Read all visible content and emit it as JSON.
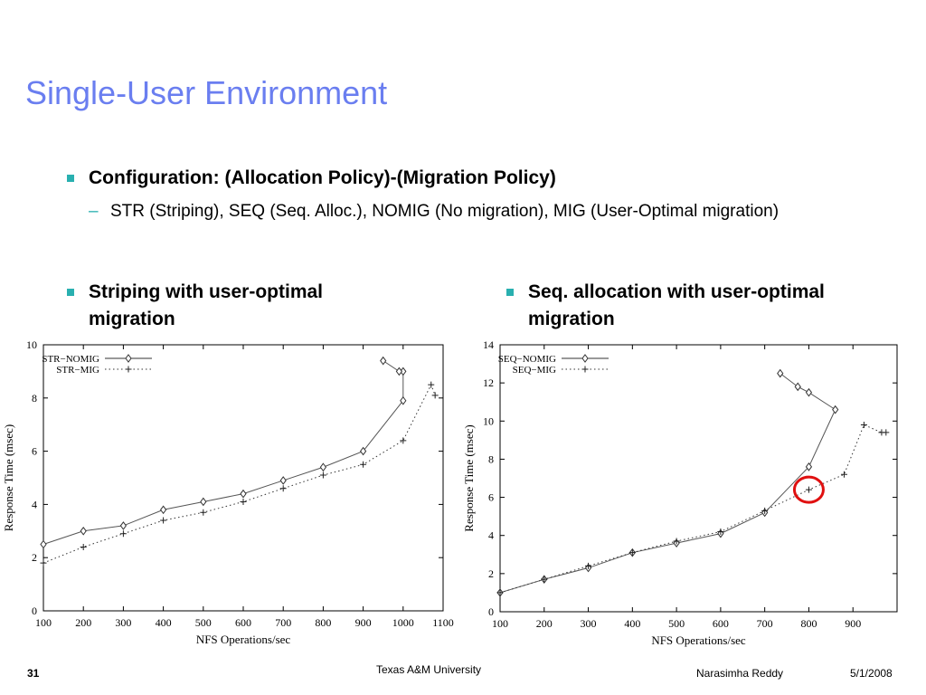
{
  "slide": {
    "title": "Single-User Environment",
    "bullet1": "Configuration: (Allocation Policy)-(Migration Policy)",
    "sub1": "STR (Striping), SEQ (Seq. Alloc.), NOMIG (No migration), MIG (User-Optimal migration)",
    "left_caption": "Striping with user-optimal migration",
    "right_caption": "Seq. allocation with user-optimal migration",
    "footer_page": "31",
    "footer_center": "Texas A&M University",
    "footer_author": "Narasimha Reddy",
    "footer_date": "5/1/2008",
    "accent_color": "#6a7ef0",
    "bullet_color": "#29b0b0",
    "highlight_color": "#e01010"
  },
  "chart_data": [
    {
      "type": "line",
      "xlabel": "NFS Operations/sec",
      "ylabel": "Response Time (msec)",
      "xlim": [
        100,
        1100
      ],
      "ylim": [
        0,
        10
      ],
      "xticks": [
        100,
        200,
        300,
        400,
        500,
        600,
        700,
        800,
        900,
        1000,
        1100
      ],
      "yticks": [
        0,
        2,
        4,
        6,
        8,
        10
      ],
      "legend": "top-left",
      "series": [
        {
          "name": "STR−NOMIG",
          "marker": "diamond",
          "style": "solid",
          "x": [
            100,
            200,
            300,
            400,
            500,
            600,
            700,
            800,
            900,
            1000,
            1000,
            990,
            950
          ],
          "y": [
            2.5,
            3.0,
            3.2,
            3.8,
            4.1,
            4.4,
            4.9,
            5.4,
            6.0,
            7.9,
            9.0,
            9.0,
            9.4
          ]
        },
        {
          "name": "STR−MIG",
          "marker": "plus",
          "style": "dotted",
          "x": [
            100,
            200,
            300,
            400,
            500,
            600,
            700,
            800,
            900,
            1000,
            1070,
            1080
          ],
          "y": [
            1.8,
            2.4,
            2.9,
            3.4,
            3.7,
            4.1,
            4.6,
            5.1,
            5.5,
            6.4,
            8.5,
            8.1
          ]
        }
      ]
    },
    {
      "type": "line",
      "xlabel": "NFS Operations/sec",
      "ylabel": "Response Time (msec)",
      "xlim": [
        100,
        1000
      ],
      "ylim": [
        0,
        14
      ],
      "xticks": [
        100,
        200,
        300,
        400,
        500,
        600,
        700,
        800,
        900
      ],
      "yticks": [
        0,
        2,
        4,
        6,
        8,
        10,
        12,
        14
      ],
      "legend": "top-left",
      "highlight": {
        "x": 800,
        "y": 6.4
      },
      "series": [
        {
          "name": "SEQ−NOMIG",
          "marker": "diamond",
          "style": "solid",
          "x": [
            100,
            200,
            300,
            400,
            500,
            600,
            700,
            800,
            860,
            800,
            775,
            735
          ],
          "y": [
            1.0,
            1.7,
            2.3,
            3.1,
            3.6,
            4.1,
            5.2,
            7.6,
            10.6,
            11.5,
            11.8,
            12.5
          ]
        },
        {
          "name": "SEQ−MIG",
          "marker": "plus",
          "style": "dotted",
          "x": [
            100,
            200,
            300,
            400,
            500,
            600,
            700,
            800,
            880,
            925,
            965,
            975
          ],
          "y": [
            1.0,
            1.7,
            2.4,
            3.1,
            3.7,
            4.2,
            5.3,
            6.4,
            7.2,
            9.8,
            9.4,
            9.4
          ]
        }
      ]
    }
  ]
}
